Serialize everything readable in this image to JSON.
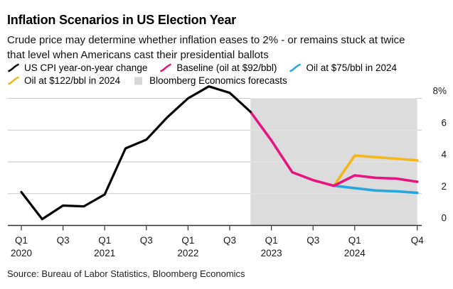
{
  "header": {
    "title": "Inflation Scenarios in US Election Year",
    "subtitle": "Crude price may determine whether inflation eases to 2% - or remains stuck at twice that level when Americans cast their presidential ballots"
  },
  "legend": {
    "rows": [
      [
        {
          "id": "cpi",
          "label": "US CPI year-on-year change",
          "color": "#000000",
          "marker": "line"
        },
        {
          "id": "baseline",
          "label": "Baseline (oil at $92/bbl)",
          "color": "#e6157f",
          "marker": "line"
        },
        {
          "id": "oil75",
          "label": "Oil at $75/bbl in 2024",
          "color": "#27a6de",
          "marker": "line"
        }
      ],
      [
        {
          "id": "oil122",
          "label": "Oil at $122/bbl in 2024",
          "color": "#f3b71d",
          "marker": "line"
        },
        {
          "id": "forecast",
          "label": "Bloomberg Economics forecasts",
          "color": "#d7d7d7",
          "marker": "box"
        }
      ]
    ]
  },
  "chart_data": {
    "type": "line",
    "unit": "%",
    "title": "Inflation Scenarios in US Election Year",
    "grid": "horizontal",
    "legend_position": "top",
    "ylim": [
      0,
      8.8
    ],
    "y_ticks": [
      0,
      2,
      4,
      6,
      8
    ],
    "y_tick_labels": [
      "0",
      "2",
      "4",
      "6",
      "8%"
    ],
    "x_quarters": [
      "Q1 2020",
      "Q2 2020",
      "Q3 2020",
      "Q4 2020",
      "Q1 2021",
      "Q2 2021",
      "Q3 2021",
      "Q4 2021",
      "Q1 2022",
      "Q2 2022",
      "Q3 2022",
      "Q4 2022",
      "Q1 2023",
      "Q2 2023",
      "Q3 2023",
      "Q4 2023",
      "Q1 2024",
      "Q2 2024",
      "Q3 2024",
      "Q4 2024"
    ],
    "x_ticks": [
      {
        "index": 0,
        "label": "Q1",
        "year": "2020"
      },
      {
        "index": 2,
        "label": "Q3",
        "year": ""
      },
      {
        "index": 4,
        "label": "Q1",
        "year": "2021"
      },
      {
        "index": 6,
        "label": "Q3",
        "year": ""
      },
      {
        "index": 8,
        "label": "Q1",
        "year": "2022"
      },
      {
        "index": 10,
        "label": "Q3",
        "year": ""
      },
      {
        "index": 12,
        "label": "Q1",
        "year": "2023"
      },
      {
        "index": 14,
        "label": "Q3",
        "year": ""
      },
      {
        "index": 16,
        "label": "Q1",
        "year": "2024"
      },
      {
        "index": 19,
        "label": "Q4",
        "year": ""
      }
    ],
    "series": [
      {
        "id": "oil122",
        "name": "Oil at $122/bbl in 2024",
        "color": "#f3b71d",
        "start_index": 15,
        "values": [
          2.5,
          4.4,
          4.3,
          4.2,
          4.1
        ]
      },
      {
        "id": "oil75",
        "name": "Oil at $75/bbl in 2024",
        "color": "#27a6de",
        "start_index": 15,
        "values": [
          2.5,
          2.35,
          2.2,
          2.15,
          2.05
        ]
      },
      {
        "id": "baseline",
        "name": "Baseline (oil at $92/bbl)",
        "color": "#e6157f",
        "start_index": 11,
        "values": [
          7.15,
          5.35,
          3.35,
          2.85,
          2.5,
          3.15,
          3.0,
          2.95,
          2.75
        ]
      },
      {
        "id": "cpi",
        "name": "US CPI year-on-year change",
        "color": "#000000",
        "start_index": 0,
        "values": [
          2.1,
          0.4,
          1.25,
          1.2,
          1.95,
          4.85,
          5.4,
          6.8,
          8.0,
          8.75,
          8.35,
          7.15
        ]
      }
    ],
    "forecast_band": {
      "label": "Bloomberg Economics forecasts",
      "start_index": 11,
      "end_index": 19
    },
    "colors": {
      "band": "#dcdcdc",
      "grid": "#c9c9c9",
      "grid_on_band": "#e9e9e9",
      "axis": "#2e2e2e"
    }
  },
  "source": "Source: Bureau of Labor Statistics, Bloomberg Economics"
}
